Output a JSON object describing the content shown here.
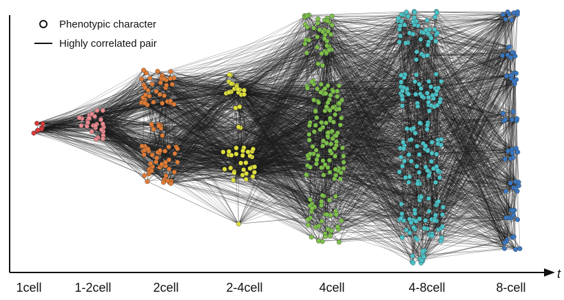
{
  "legend": {
    "node_label": "Phenotypic character",
    "edge_label": "Highly correlated pair"
  },
  "axis": {
    "variable": "t"
  },
  "stages": [
    {
      "label": "1cell",
      "color": "#d93a3a"
    },
    {
      "label": "1-2cell",
      "color": "#e98a8f"
    },
    {
      "label": "2cell",
      "color": "#e07b35"
    },
    {
      "label": "2-4cell",
      "color": "#dede3d"
    },
    {
      "label": "4cell",
      "color": "#7ec04a"
    },
    {
      "label": "4-8cell",
      "color": "#4cc3c8"
    },
    {
      "label": "8-cell",
      "color": "#3a78c2"
    }
  ]
}
